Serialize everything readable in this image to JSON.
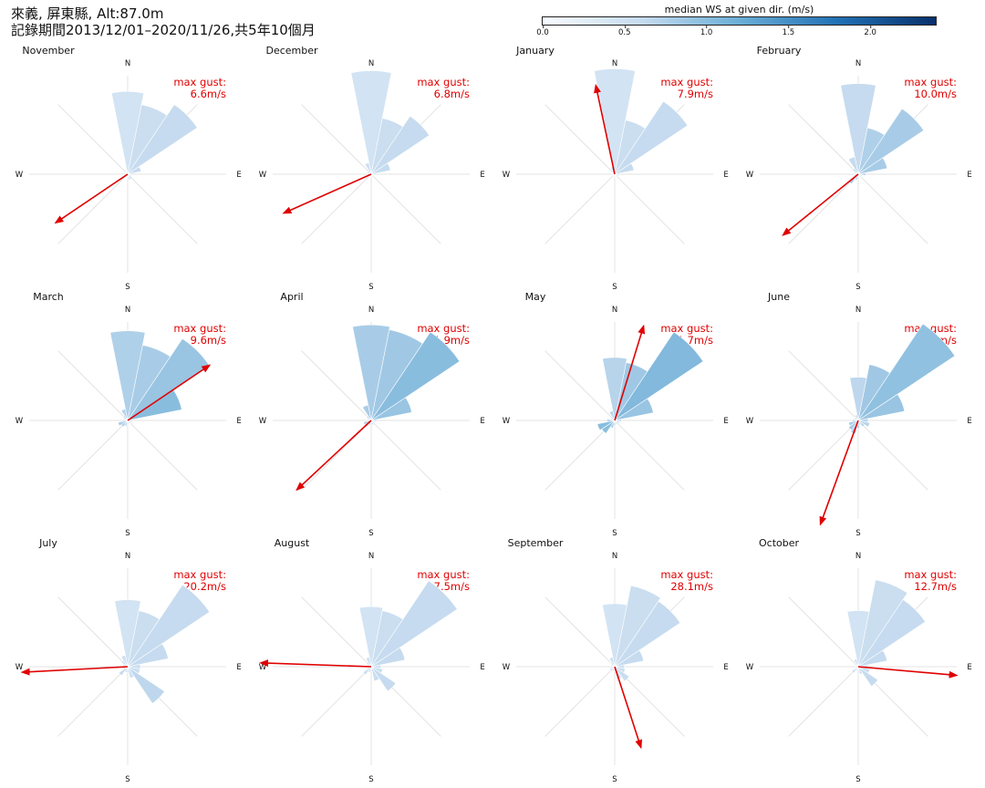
{
  "title": {
    "line1": "來義, 屏東縣, Alt:87.0m",
    "line2": "記錄期間2013/12/01–2020/11/26,共5年10個月"
  },
  "colorbar": {
    "label": "median WS at given dir. (m/s)",
    "min": 0.0,
    "max": 2.4,
    "ticks": [
      "0.0",
      "0.5",
      "1.0",
      "1.5",
      "2.0"
    ],
    "colors": [
      "#f7fbff",
      "#c6dbef",
      "#6baed6",
      "#2171b5",
      "#08306b"
    ]
  },
  "compass": {
    "n": "N",
    "e": "E",
    "s": "S",
    "w": "W"
  },
  "gust_prefix": "max gust:",
  "chart_data": {
    "type": "wind-rose",
    "directions_deg": [
      0,
      22.5,
      45,
      67.5,
      90,
      112.5,
      135,
      157.5,
      180,
      202.5,
      225,
      247.5,
      270,
      292.5,
      315,
      337.5
    ],
    "radial_max_frequency": 1.0,
    "months": [
      {
        "name": "November",
        "gust": "6.6m/s",
        "gust_dir_deg": 236,
        "gust_scale": 0.88,
        "freq": [
          0.84,
          0.72,
          0.85,
          0.14,
          0.03,
          0.04,
          0.06,
          0.06,
          0.03,
          0.02,
          0.02,
          0.02,
          0.02,
          0.02,
          0.02,
          0.03
        ],
        "speed": [
          0.45,
          0.55,
          0.6,
          0.6,
          0.5,
          0.5,
          0.6,
          0.5,
          0.5,
          0.5,
          0.5,
          0.5,
          0.5,
          0.5,
          0.5,
          0.5
        ]
      },
      {
        "name": "December",
        "gust": "6.8m/s",
        "gust_dir_deg": 246,
        "gust_scale": 0.97,
        "freq": [
          1.05,
          0.58,
          0.71,
          0.2,
          0.05,
          0.03,
          0.02,
          0.02,
          0.02,
          0.02,
          0.03,
          0.04,
          0.04,
          0.04,
          0.05,
          0.12
        ],
        "speed": [
          0.45,
          0.55,
          0.6,
          0.6,
          0.5,
          0.5,
          0.5,
          0.5,
          0.5,
          0.5,
          0.5,
          0.5,
          0.5,
          0.5,
          0.5,
          0.5
        ]
      },
      {
        "name": "January",
        "gust": "7.9m/s",
        "gust_dir_deg": 348,
        "gust_scale": 0.92,
        "freq": [
          1.07,
          0.56,
          0.89,
          0.2,
          0.05,
          0.04,
          0.03,
          0.03,
          0.03,
          0.03,
          0.03,
          0.03,
          0.03,
          0.03,
          0.05,
          0.08
        ],
        "speed": [
          0.45,
          0.55,
          0.6,
          0.6,
          0.5,
          0.5,
          0.5,
          0.5,
          0.5,
          0.5,
          0.5,
          0.5,
          0.5,
          0.5,
          0.5,
          0.5
        ]
      },
      {
        "name": "February",
        "gust": "10.0m/s",
        "gust_dir_deg": 231,
        "gust_scale": 0.98,
        "freq": [
          0.92,
          0.48,
          0.8,
          0.3,
          0.08,
          0.04,
          0.04,
          0.03,
          0.05,
          0.06,
          0.12,
          0.04,
          0.04,
          0.04,
          0.07,
          0.18
        ],
        "speed": [
          0.6,
          0.75,
          0.8,
          0.8,
          0.6,
          0.5,
          0.5,
          0.5,
          0.6,
          0.7,
          0.8,
          0.6,
          0.5,
          0.5,
          0.6,
          0.6
        ]
      },
      {
        "name": "March",
        "gust": "9.6m/s",
        "gust_dir_deg": 56,
        "gust_scale": 1.0,
        "freq": [
          0.91,
          0.78,
          1.0,
          0.56,
          0.05,
          0.04,
          0.04,
          0.03,
          0.04,
          0.06,
          0.08,
          0.1,
          0.05,
          0.04,
          0.06,
          0.12
        ],
        "speed": [
          0.75,
          0.8,
          0.9,
          1.0,
          0.6,
          0.6,
          0.6,
          0.6,
          0.7,
          0.7,
          0.8,
          0.8,
          0.6,
          0.6,
          0.6,
          0.7
        ]
      },
      {
        "name": "April",
        "gust": "11.9m/s",
        "gust_dir_deg": 227,
        "gust_scale": 1.03,
        "freq": [
          0.97,
          0.94,
          1.08,
          0.42,
          0.06,
          0.04,
          0.04,
          0.05,
          0.04,
          0.05,
          0.08,
          0.08,
          0.04,
          0.04,
          0.06,
          0.16
        ],
        "speed": [
          0.8,
          0.85,
          1.0,
          0.9,
          0.6,
          0.6,
          0.6,
          0.6,
          0.7,
          0.7,
          0.8,
          0.8,
          0.6,
          0.6,
          0.6,
          0.8
        ]
      },
      {
        "name": "May",
        "gust": "11.7m/s",
        "gust_dir_deg": 17,
        "gust_scale": 1.0,
        "freq": [
          0.64,
          0.6,
          1.08,
          0.4,
          0.07,
          0.05,
          0.05,
          0.04,
          0.05,
          0.08,
          0.16,
          0.18,
          0.08,
          0.04,
          0.05,
          0.1
        ],
        "speed": [
          0.7,
          0.85,
          1.05,
          0.9,
          0.6,
          0.6,
          0.6,
          0.6,
          0.7,
          0.8,
          1.0,
          1.0,
          0.7,
          0.6,
          0.6,
          0.7
        ]
      },
      {
        "name": "June",
        "gust": "17.3m/s",
        "gust_dir_deg": 200,
        "gust_scale": 1.12,
        "freq": [
          0.44,
          0.58,
          1.18,
          0.48,
          0.1,
          0.12,
          0.08,
          0.05,
          0.08,
          0.14,
          0.12,
          0.1,
          0.06,
          0.04,
          0.04,
          0.06
        ],
        "speed": [
          0.65,
          0.85,
          0.95,
          0.9,
          0.7,
          0.7,
          0.7,
          0.6,
          0.7,
          0.8,
          0.8,
          0.8,
          0.6,
          0.6,
          0.6,
          0.6
        ]
      },
      {
        "name": "July",
        "gust": "20.2m/s",
        "gust_dir_deg": 267,
        "gust_scale": 1.07,
        "freq": [
          0.68,
          0.58,
          1.0,
          0.42,
          0.13,
          0.13,
          0.45,
          0.12,
          0.06,
          0.06,
          0.11,
          0.05,
          0.05,
          0.05,
          0.08,
          0.12
        ],
        "speed": [
          0.45,
          0.55,
          0.6,
          0.6,
          0.5,
          0.55,
          0.65,
          0.5,
          0.5,
          0.5,
          0.6,
          0.5,
          0.5,
          0.5,
          0.5,
          0.5
        ]
      },
      {
        "name": "August",
        "gust": "17.5m/s",
        "gust_dir_deg": 272,
        "gust_scale": 1.12,
        "freq": [
          0.61,
          0.58,
          1.05,
          0.35,
          0.1,
          0.12,
          0.3,
          0.15,
          0.05,
          0.06,
          0.1,
          0.04,
          0.04,
          0.04,
          0.06,
          0.1
        ],
        "speed": [
          0.45,
          0.55,
          0.6,
          0.6,
          0.5,
          0.55,
          0.6,
          0.55,
          0.5,
          0.5,
          0.55,
          0.5,
          0.5,
          0.5,
          0.5,
          0.5
        ]
      },
      {
        "name": "September",
        "gust": "28.1m/s",
        "gust_dir_deg": 162,
        "gust_scale": 0.86,
        "freq": [
          0.64,
          0.84,
          0.8,
          0.3,
          0.1,
          0.11,
          0.18,
          0.13,
          0.04,
          0.05,
          0.06,
          0.05,
          0.04,
          0.04,
          0.05,
          0.1
        ],
        "speed": [
          0.45,
          0.55,
          0.6,
          0.6,
          0.5,
          0.55,
          0.55,
          0.5,
          0.5,
          0.5,
          0.5,
          0.5,
          0.5,
          0.5,
          0.5,
          0.5
        ]
      },
      {
        "name": "October",
        "gust": "12.7m/s",
        "gust_dir_deg": 95,
        "gust_scale": 1.0,
        "freq": [
          0.57,
          0.9,
          0.82,
          0.3,
          0.1,
          0.12,
          0.24,
          0.08,
          0.03,
          0.04,
          0.08,
          0.03,
          0.03,
          0.03,
          0.05,
          0.08
        ],
        "speed": [
          0.45,
          0.55,
          0.6,
          0.6,
          0.5,
          0.55,
          0.6,
          0.5,
          0.5,
          0.5,
          0.5,
          0.5,
          0.5,
          0.5,
          0.5,
          0.5
        ]
      }
    ]
  }
}
